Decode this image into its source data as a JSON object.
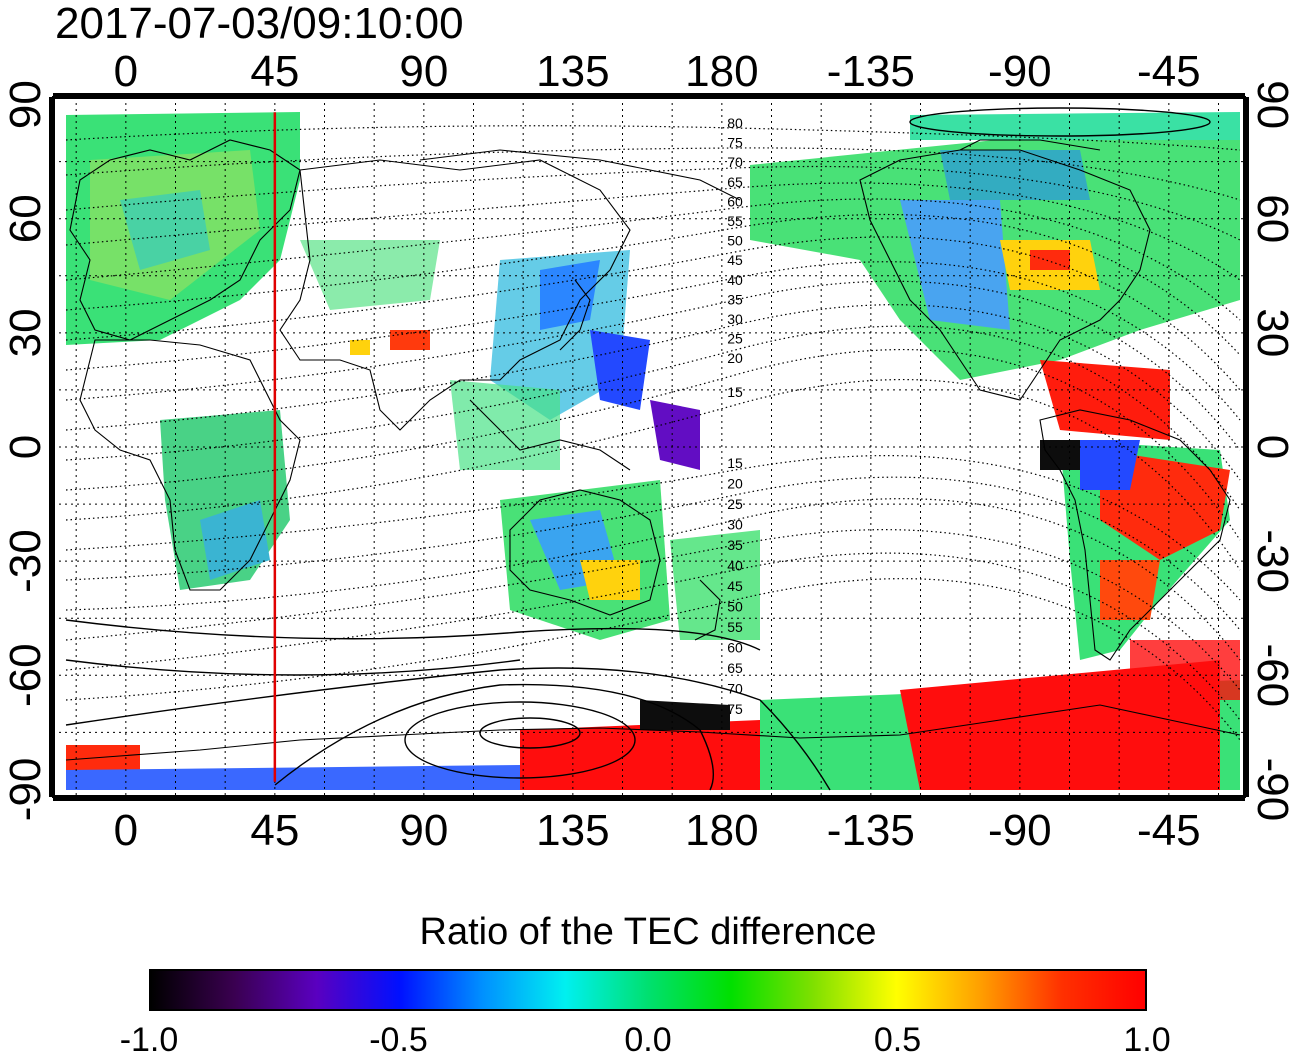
{
  "timestamp": "2017-07-03/09:10:00",
  "map": {
    "lon_ticks": [
      "0",
      "45",
      "90",
      "135",
      "180",
      "-135",
      "-90",
      "-45"
    ],
    "lon_tick_values": [
      0,
      45,
      90,
      135,
      180,
      225,
      270,
      315
    ],
    "lat_ticks": [
      "90",
      "60",
      "30",
      "0",
      "-30",
      "-60",
      "-90"
    ],
    "lat_tick_values": [
      90,
      60,
      30,
      0,
      -30,
      -60,
      -90
    ],
    "lon_range": [
      -22,
      338
    ],
    "lat_range": [
      -92,
      92
    ],
    "marker_longitude": 45,
    "marker_color": "#e00000",
    "north_contours": [
      "80",
      "75",
      "70",
      "65",
      "60",
      "55",
      "50",
      "45",
      "40",
      "35",
      "30",
      "25",
      "20",
      "15"
    ],
    "south_contours": [
      "15",
      "20",
      "25",
      "30",
      "35",
      "40",
      "45",
      "50",
      "55",
      "60",
      "65",
      "70",
      "75"
    ]
  },
  "colorbar": {
    "title": "Ratio of the TEC difference",
    "tick_labels": [
      "-1.0",
      "-0.5",
      "0.0",
      "0.5",
      "1.0"
    ],
    "tick_values": [
      -1.0,
      -0.5,
      0.0,
      0.5,
      1.0
    ],
    "range": [
      -1.0,
      1.0
    ],
    "colors": [
      "#000000",
      "#3a0050",
      "#5a00c0",
      "#0010ff",
      "#0090ff",
      "#00f0f0",
      "#00e070",
      "#00e000",
      "#80e000",
      "#ffff00",
      "#ffa000",
      "#ff3000",
      "#ff0000"
    ]
  }
}
